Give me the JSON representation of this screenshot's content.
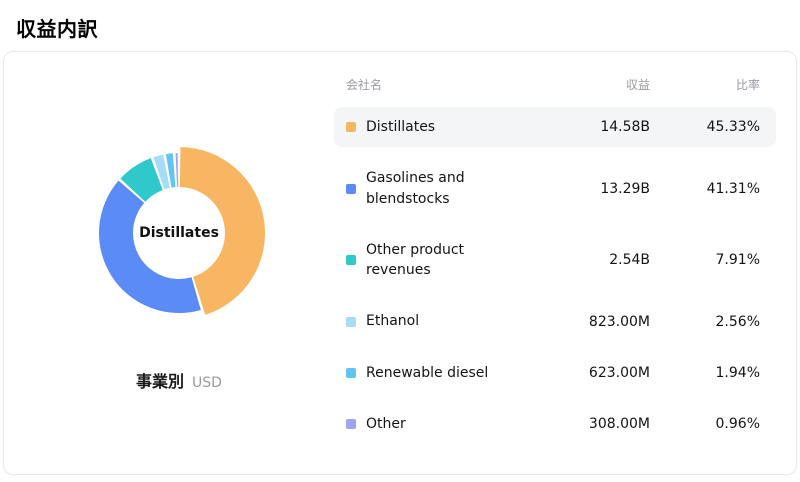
{
  "page_title": "収益内訳",
  "card": {
    "center_label": "Distillates",
    "chart_label": "事業別",
    "chart_currency": "USD"
  },
  "table": {
    "headers": [
      "会社名",
      "収益",
      "比率"
    ]
  },
  "chart_data": {
    "type": "pie",
    "title": "事業別",
    "unit": "USD",
    "center_label": "Distillates",
    "legend_position": "right",
    "categories": [
      "Distillates",
      "Gasolines and blendstocks",
      "Other product revenues",
      "Ethanol",
      "Renewable diesel",
      "Other"
    ],
    "values": [
      45.33,
      41.31,
      7.91,
      2.56,
      1.94,
      0.96
    ],
    "revenues": [
      "14.58B",
      "13.29B",
      "2.54B",
      "823.00M",
      "623.00M",
      "308.00M"
    ],
    "percent_labels": [
      "45.33%",
      "41.31%",
      "7.91%",
      "2.56%",
      "1.94%",
      "0.96%"
    ],
    "colors": [
      "#F8B662",
      "#5B8BF7",
      "#2FC9CB",
      "#A6DCF8",
      "#62C4F0",
      "#9DA4F5"
    ],
    "highlighted_index": 0,
    "highlight_row_color": "#f4f5f6"
  }
}
